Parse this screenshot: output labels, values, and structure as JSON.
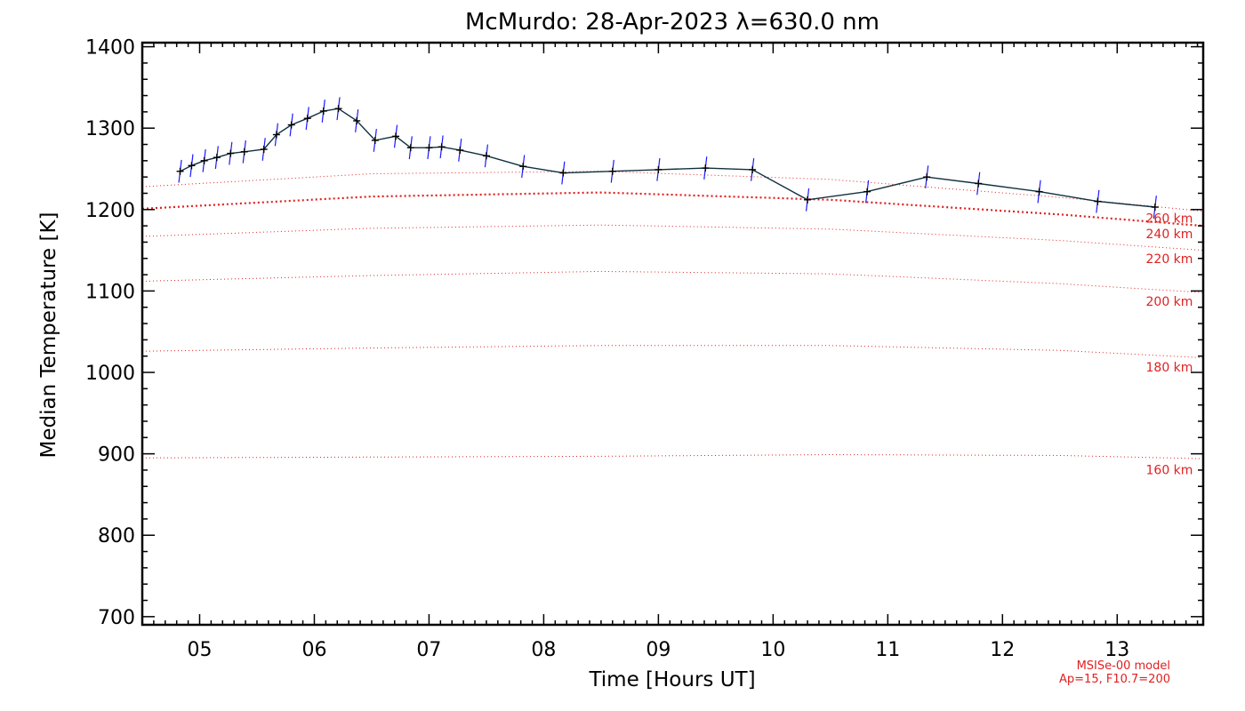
{
  "chart_data": {
    "type": "line",
    "title": "McMurdo: 28-Apr-2023 λ=630.0 nm",
    "xlabel": "Time [Hours UT]",
    "ylabel": "Median Temperature [K]",
    "xlim": [
      4.5,
      13.75
    ],
    "ylim": [
      690,
      1405
    ],
    "x_ticks": [
      5,
      6,
      7,
      8,
      9,
      10,
      11,
      12,
      13
    ],
    "x_tick_labels": [
      "05",
      "06",
      "07",
      "08",
      "09",
      "10",
      "11",
      "12",
      "13"
    ],
    "y_ticks": [
      700,
      800,
      900,
      1000,
      1100,
      1200,
      1300,
      1400
    ],
    "y_tick_labels": [
      "700",
      "800",
      "900",
      "1000",
      "1100",
      "1200",
      "1300",
      "1400"
    ],
    "series": [
      {
        "name": "Median Temperature",
        "x": [
          4.83,
          4.93,
          5.04,
          5.15,
          5.27,
          5.39,
          5.56,
          5.67,
          5.8,
          5.94,
          6.08,
          6.21,
          6.37,
          6.53,
          6.71,
          6.84,
          7.0,
          7.11,
          7.27,
          7.5,
          7.82,
          8.17,
          8.6,
          9.0,
          9.41,
          9.82,
          10.3,
          10.82,
          11.34,
          11.79,
          12.32,
          12.83,
          13.33
        ],
        "y": [
          1247,
          1254,
          1260,
          1264,
          1269,
          1271,
          1274,
          1292,
          1304,
          1312,
          1321,
          1324,
          1309,
          1285,
          1290,
          1276,
          1276,
          1277,
          1273,
          1266,
          1253,
          1245,
          1247,
          1249,
          1251,
          1249,
          1212,
          1222,
          1240,
          1232,
          1222,
          1210,
          1203
        ],
        "error": [
          14,
          14,
          14,
          14,
          14,
          14,
          14,
          14,
          14,
          14,
          14,
          14,
          14,
          14,
          14,
          14,
          14,
          14,
          14,
          14,
          14,
          14,
          14,
          14,
          14,
          14,
          14,
          14,
          14,
          14,
          14,
          14,
          14
        ]
      }
    ],
    "model_curves": [
      {
        "label": "160 km",
        "x": [
          4.5,
          6.5,
          8.5,
          10.5,
          12.5,
          13.75
        ],
        "y": [
          895,
          896,
          897,
          899,
          898,
          894
        ],
        "emphasis": false
      },
      {
        "label": "180 km",
        "x": [
          4.5,
          6.5,
          8.5,
          10.5,
          12.5,
          13.75
        ],
        "y": [
          1026,
          1030,
          1033,
          1033,
          1027,
          1018
        ],
        "emphasis": false
      },
      {
        "label": "200 km",
        "x": [
          4.5,
          6.5,
          8.5,
          10.5,
          12.5,
          13.75
        ],
        "y": [
          1112,
          1119,
          1124,
          1121,
          1109,
          1098
        ],
        "emphasis": false
      },
      {
        "label": "220 km",
        "x": [
          4.5,
          6.5,
          8.5,
          10.5,
          12.5,
          13.75
        ],
        "y": [
          1167,
          1177,
          1181,
          1176,
          1162,
          1150
        ],
        "emphasis": false
      },
      {
        "label": "240 km",
        "x": [
          4.5,
          6.5,
          8.5,
          10.5,
          12.5,
          13.75
        ],
        "y": [
          1201,
          1216,
          1221,
          1212,
          1194,
          1180
        ],
        "emphasis": true
      },
      {
        "label": "260 km",
        "x": [
          4.5,
          6.5,
          8.5,
          10.5,
          12.5,
          13.75
        ],
        "y": [
          1228,
          1244,
          1247,
          1237,
          1215,
          1198
        ],
        "emphasis": false
      }
    ],
    "model_note": [
      "MSISe-00 model",
      "Ap=15, F10.7=200"
    ],
    "grid": false
  }
}
